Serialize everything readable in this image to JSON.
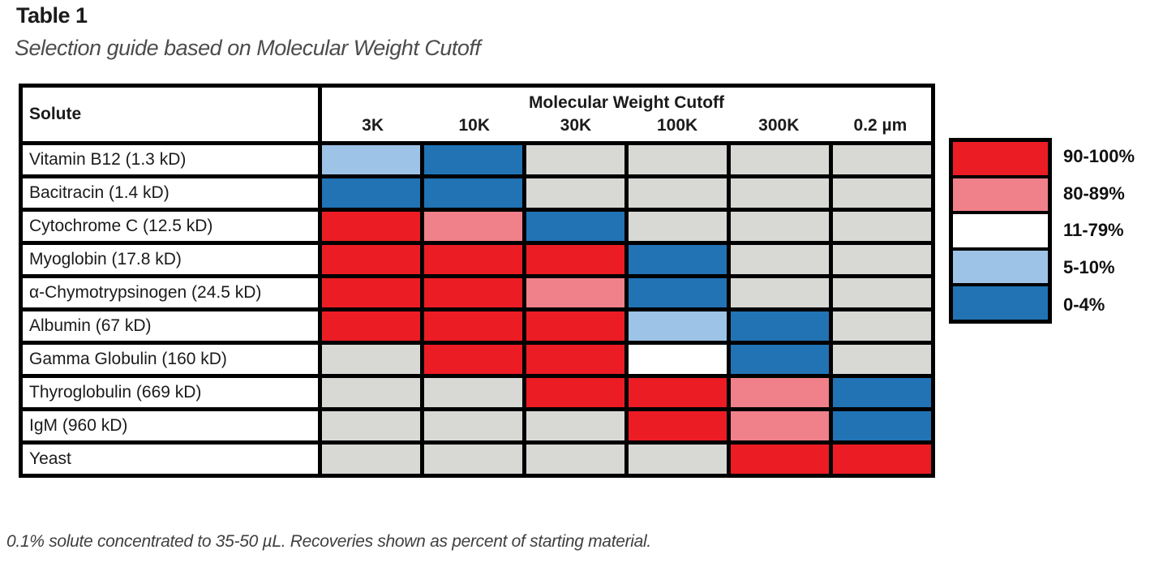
{
  "page": {
    "title": "Table 1",
    "subtitle": "Selection guide based on Molecular Weight Cutoff",
    "footnote": "0.1% solute concentrated to 35-50 µL. Recoveries shown as percent of starting material."
  },
  "table": {
    "solute_header": "Solute",
    "group_header": "Molecular Weight Cutoff",
    "columns": [
      "3K",
      "10K",
      "30K",
      "100K",
      "300K",
      "0.2 µm"
    ],
    "rows": [
      {
        "solute": "Vitamin B12 (1.3 kD)",
        "recoveries": [
          "5-10%",
          "0-4%",
          "n/a",
          "n/a",
          "n/a",
          "n/a"
        ]
      },
      {
        "solute": "Bacitracin (1.4 kD)",
        "recoveries": [
          "0-4%",
          "0-4%",
          "n/a",
          "n/a",
          "n/a",
          "n/a"
        ]
      },
      {
        "solute": "Cytochrome C (12.5 kD)",
        "recoveries": [
          "90-100%",
          "80-89%",
          "0-4%",
          "n/a",
          "n/a",
          "n/a"
        ]
      },
      {
        "solute": "Myoglobin (17.8 kD)",
        "recoveries": [
          "90-100%",
          "90-100%",
          "90-100%",
          "0-4%",
          "n/a",
          "n/a"
        ]
      },
      {
        "solute": "α-Chymotrypsinogen (24.5 kD)",
        "recoveries": [
          "90-100%",
          "90-100%",
          "80-89%",
          "0-4%",
          "n/a",
          "n/a"
        ]
      },
      {
        "solute": "Albumin (67 kD)",
        "recoveries": [
          "90-100%",
          "90-100%",
          "90-100%",
          "5-10%",
          "0-4%",
          "n/a"
        ]
      },
      {
        "solute": "Gamma Globulin (160 kD)",
        "recoveries": [
          "n/a",
          "90-100%",
          "90-100%",
          "11-79%",
          "0-4%",
          "n/a"
        ]
      },
      {
        "solute": "Thyroglobulin (669 kD)",
        "recoveries": [
          "n/a",
          "n/a",
          "90-100%",
          "90-100%",
          "80-89%",
          "0-4%"
        ]
      },
      {
        "solute": "IgM (960 kD)",
        "recoveries": [
          "n/a",
          "n/a",
          "n/a",
          "90-100%",
          "80-89%",
          "0-4%"
        ]
      },
      {
        "solute": "Yeast",
        "recoveries": [
          "n/a",
          "n/a",
          "n/a",
          "n/a",
          "90-100%",
          "90-100%"
        ]
      }
    ]
  },
  "legend": {
    "items": [
      {
        "range": "90-100%",
        "color": "#EC1C24"
      },
      {
        "range": "80-89%",
        "color": "#F0808A"
      },
      {
        "range": "11-79%",
        "color": "#FFFFFF"
      },
      {
        "range": "5-10%",
        "color": "#9DC3E6"
      },
      {
        "range": "0-4%",
        "color": "#2173B4"
      }
    ],
    "no_data_color": "#D8D8D5",
    "border_color": "#000000"
  }
}
